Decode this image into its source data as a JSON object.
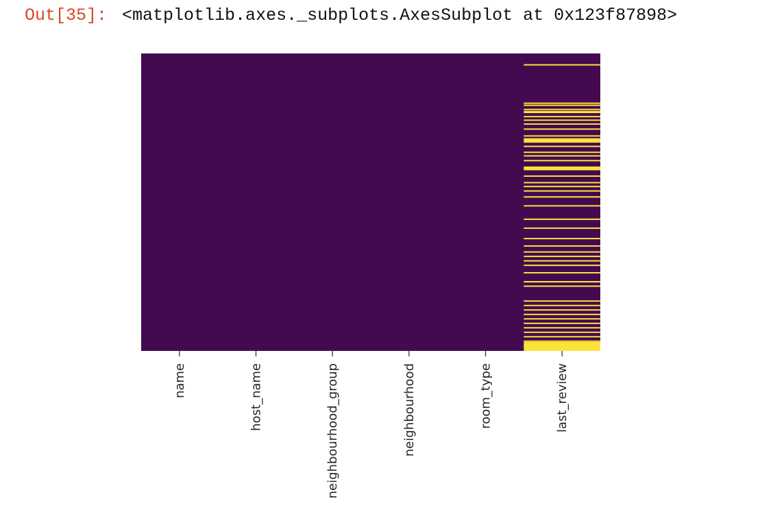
{
  "cell": {
    "prompt": "Out[35]:",
    "text": "<matplotlib.axes._subplots.AxesSubplot at 0x123f87898>"
  },
  "colors": {
    "present": "#440a4f",
    "missing": "#fde23c",
    "tick": "#262626"
  },
  "chart_data": {
    "type": "heatmap",
    "title": "",
    "xlabel": "",
    "ylabel": "",
    "colorbar": false,
    "yticks": false,
    "columns": [
      "name",
      "host_name",
      "neighbourhood_group",
      "neighbourhood",
      "room_type",
      "last_review"
    ],
    "value_meaning": "null indicator (1 = missing)",
    "rows_range": [
      0,
      1
    ],
    "missing_rows": [
      {
        "column": "last_review",
        "positions": [
          0.036,
          0.165,
          0.172,
          0.186,
          0.193,
          0.21,
          0.222,
          0.235,
          0.252,
          0.275,
          0.285,
          0.31,
          0.33,
          0.342,
          0.358,
          0.388,
          0.41,
          0.432,
          0.445,
          0.46,
          0.48,
          0.51,
          0.555,
          0.585,
          0.62,
          0.645,
          0.665,
          0.68,
          0.695,
          0.71,
          0.735,
          0.78,
          0.83,
          0.845,
          0.86,
          0.875,
          0.89,
          0.905,
          0.92,
          0.935,
          0.95,
          0.965,
          0.98
        ]
      },
      {
        "column": "last_review",
        "bands": [
          [
            0.196,
            0.2
          ],
          [
            0.286,
            0.3
          ],
          [
            0.38,
            0.392
          ],
          [
            0.765,
            0.77
          ],
          [
            0.97,
            1.0
          ]
        ]
      }
    ]
  }
}
